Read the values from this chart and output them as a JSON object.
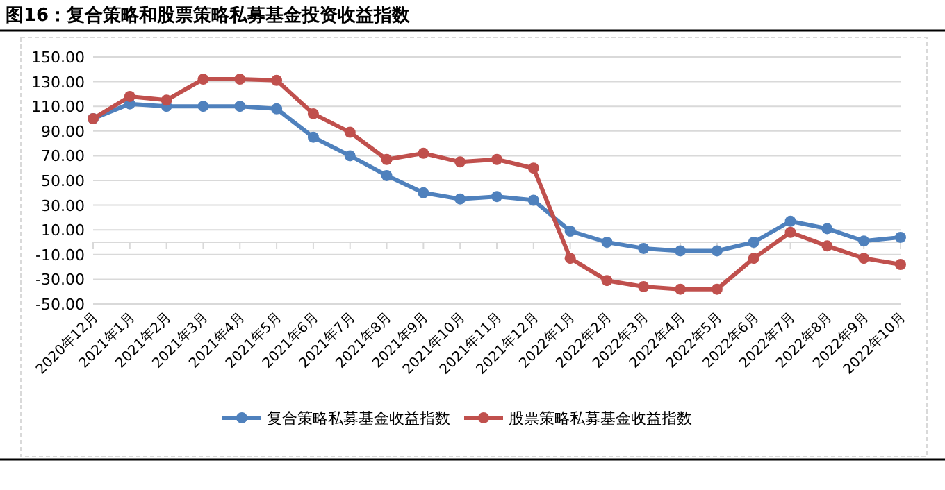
{
  "chart_data": {
    "type": "line",
    "title": "图16：复合策略和股票策略私募基金投资收益指数",
    "categories": [
      "2020年12月",
      "2021年1月",
      "2021年2月",
      "2021年3月",
      "2021年4月",
      "2021年5月",
      "2021年6月",
      "2021年7月",
      "2021年8月",
      "2021年9月",
      "2021年10月",
      "2021年11月",
      "2021年12月",
      "2022年1月",
      "2022年2月",
      "2022年3月",
      "2022年4月",
      "2022年5月",
      "2022年6月",
      "2022年7月",
      "2022年8月",
      "2022年9月",
      "2022年10月"
    ],
    "series": [
      {
        "name": "复合策略私募基金收益指数",
        "color": "#4f81bd",
        "values": [
          100,
          112,
          110,
          110,
          110,
          108,
          85,
          70,
          54,
          40,
          35,
          37,
          34,
          9,
          0,
          -5,
          -7,
          -7,
          0,
          17,
          11,
          1,
          4
        ]
      },
      {
        "name": "股票策略私募基金收益指数",
        "color": "#c0504d",
        "values": [
          100,
          118,
          115,
          132,
          132,
          131,
          104,
          89,
          67,
          72,
          65,
          67,
          60,
          -13,
          -31,
          -36,
          -38,
          -38,
          -13,
          8,
          -3,
          -13,
          -18
        ]
      }
    ],
    "ylim": [
      -50,
      150
    ],
    "yticks": [
      {
        "value": -50,
        "label": "-50.00"
      },
      {
        "value": -30,
        "label": "-30.00"
      },
      {
        "value": -10,
        "label": "-10.00"
      },
      {
        "value": 10,
        "label": "10.00"
      },
      {
        "value": 30,
        "label": "30.00"
      },
      {
        "value": 50,
        "label": "50.00"
      },
      {
        "value": 70,
        "label": "70.00"
      },
      {
        "value": 90,
        "label": "90.00"
      },
      {
        "value": 110,
        "label": "110.00"
      },
      {
        "value": 130,
        "label": "130.00"
      },
      {
        "value": 150,
        "label": "150.00"
      }
    ],
    "grid": "y",
    "legend": "bottom",
    "marker": "circle",
    "line_style": "solid"
  }
}
